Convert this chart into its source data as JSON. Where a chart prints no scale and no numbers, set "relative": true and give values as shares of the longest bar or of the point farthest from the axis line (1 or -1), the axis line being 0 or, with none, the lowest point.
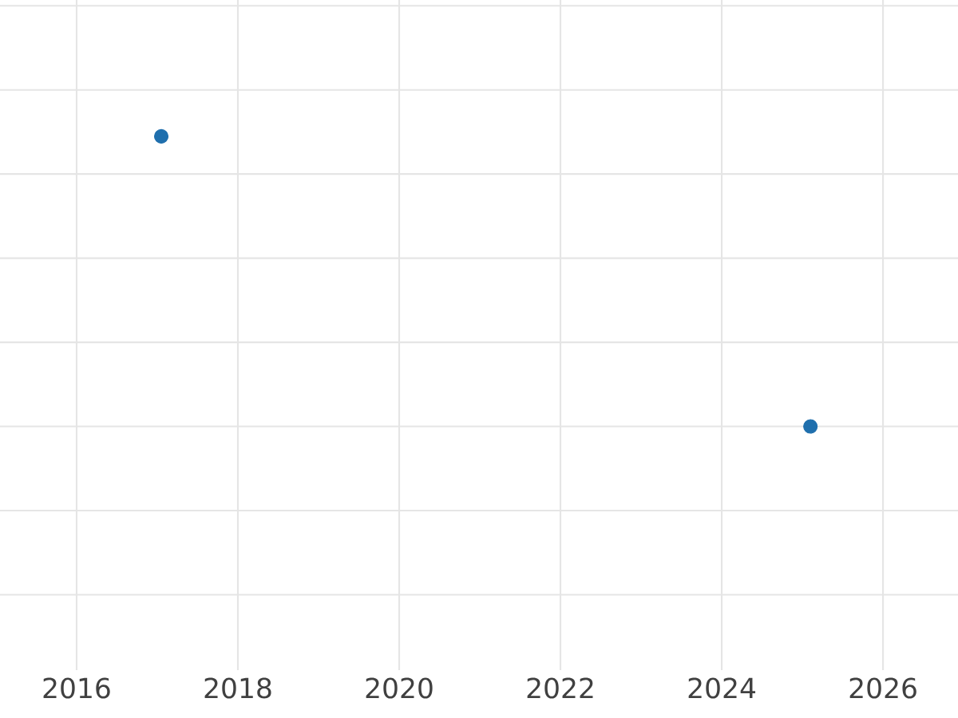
{
  "chart_data": {
    "type": "scatter",
    "relative": true,
    "x": [
      2017.05,
      2025.1
    ],
    "series": [
      {
        "color": "#1f6fad",
        "values": [
          1,
          0
        ]
      }
    ],
    "xlim": [
      2015.05,
      2026.93
    ],
    "xticks": [
      2016,
      2018,
      2020,
      2022,
      2024,
      2026
    ],
    "grid": true,
    "tick_labels": "x"
  }
}
